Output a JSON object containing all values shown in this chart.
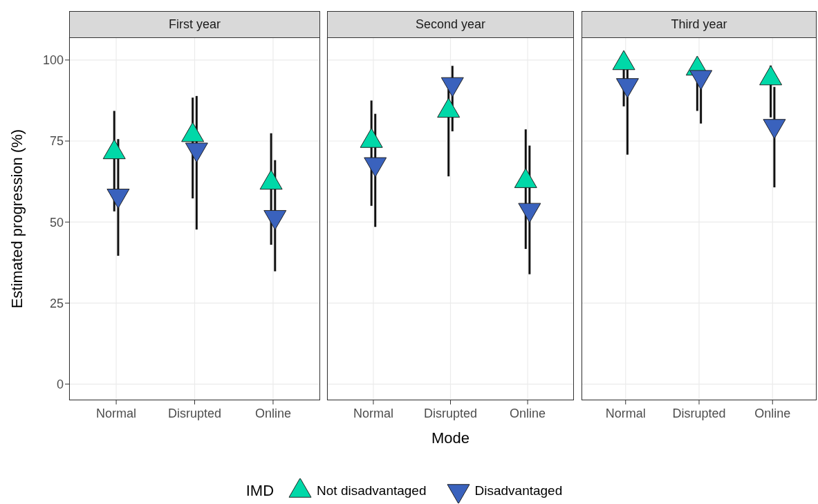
{
  "chart_data": [
    {
      "type": "scatter",
      "title": "First year",
      "ylabel": "Estimated progression (%)",
      "legend": "bottom",
      "legend_title": "IMD",
      "categories": [
        "Normal",
        "Disrupted",
        "Online"
      ],
      "ylim": [
        -5,
        107
      ],
      "yticks": [
        0,
        25,
        50,
        75,
        100
      ],
      "grid": true,
      "series": [
        {
          "name": "Not disadvantaged",
          "color": "#00d8a8",
          "marker": "triangle",
          "values": [
            71.5,
            76.8,
            62.1
          ],
          "errors": [
            [
              53.3,
              84.3
            ],
            [
              57.3,
              88.4
            ],
            [
              43.0,
              77.4
            ]
          ]
        },
        {
          "name": "Disadvantaged",
          "color": "#3a62bd",
          "marker": "triangle-down",
          "values": [
            58.2,
            72.4,
            51.6
          ],
          "errors": [
            [
              39.6,
              75.6
            ],
            [
              47.7,
              88.9
            ],
            [
              34.8,
              69.1
            ]
          ]
        }
      ]
    },
    {
      "type": "scatter",
      "title": "Second year",
      "xlabel": "Mode",
      "categories": [
        "Normal",
        "Disrupted",
        "Online"
      ],
      "ylim": [
        -5,
        107
      ],
      "yticks": [
        0,
        25,
        50,
        75,
        100
      ],
      "grid": true,
      "tick_labels": "x",
      "series": [
        {
          "color": "#00d8a8",
          "marker": "triangle",
          "values": [
            75.0,
            84.3,
            62.6
          ],
          "errors": [
            [
              55.0,
              87.5
            ],
            [
              64.1,
              91.0
            ],
            [
              41.7,
              78.6
            ]
          ]
        },
        {
          "color": "#3a62bd",
          "marker": "triangle-down",
          "values": [
            67.9,
            92.6,
            53.8
          ],
          "errors": [
            [
              48.5,
              83.4
            ],
            [
              78.0,
              98.2
            ],
            [
              33.9,
              73.6
            ]
          ]
        }
      ]
    },
    {
      "type": "scatter",
      "title": "Third year",
      "categories": [
        "Normal",
        "Disrupted",
        "Online"
      ],
      "ylim": [
        -5,
        107
      ],
      "yticks": [
        0,
        25,
        50,
        75,
        100
      ],
      "grid": true,
      "tick_labels": "x",
      "series": [
        {
          "color": "#00d8a8",
          "marker": "triangle",
          "values": [
            99.0,
            97.3,
            94.3
          ],
          "errors": [
            [
              85.7,
              100
            ],
            [
              84.3,
              97.3
            ],
            [
              82.3,
              98.3
            ]
          ]
        },
        {
          "color": "#3a62bd",
          "marker": "triangle-down",
          "values": [
            92.3,
            94.8,
            79.7
          ],
          "errors": [
            [
              70.8,
              97
            ],
            [
              80.4,
              98
            ],
            [
              60.7,
              91.7
            ]
          ]
        }
      ]
    }
  ]
}
